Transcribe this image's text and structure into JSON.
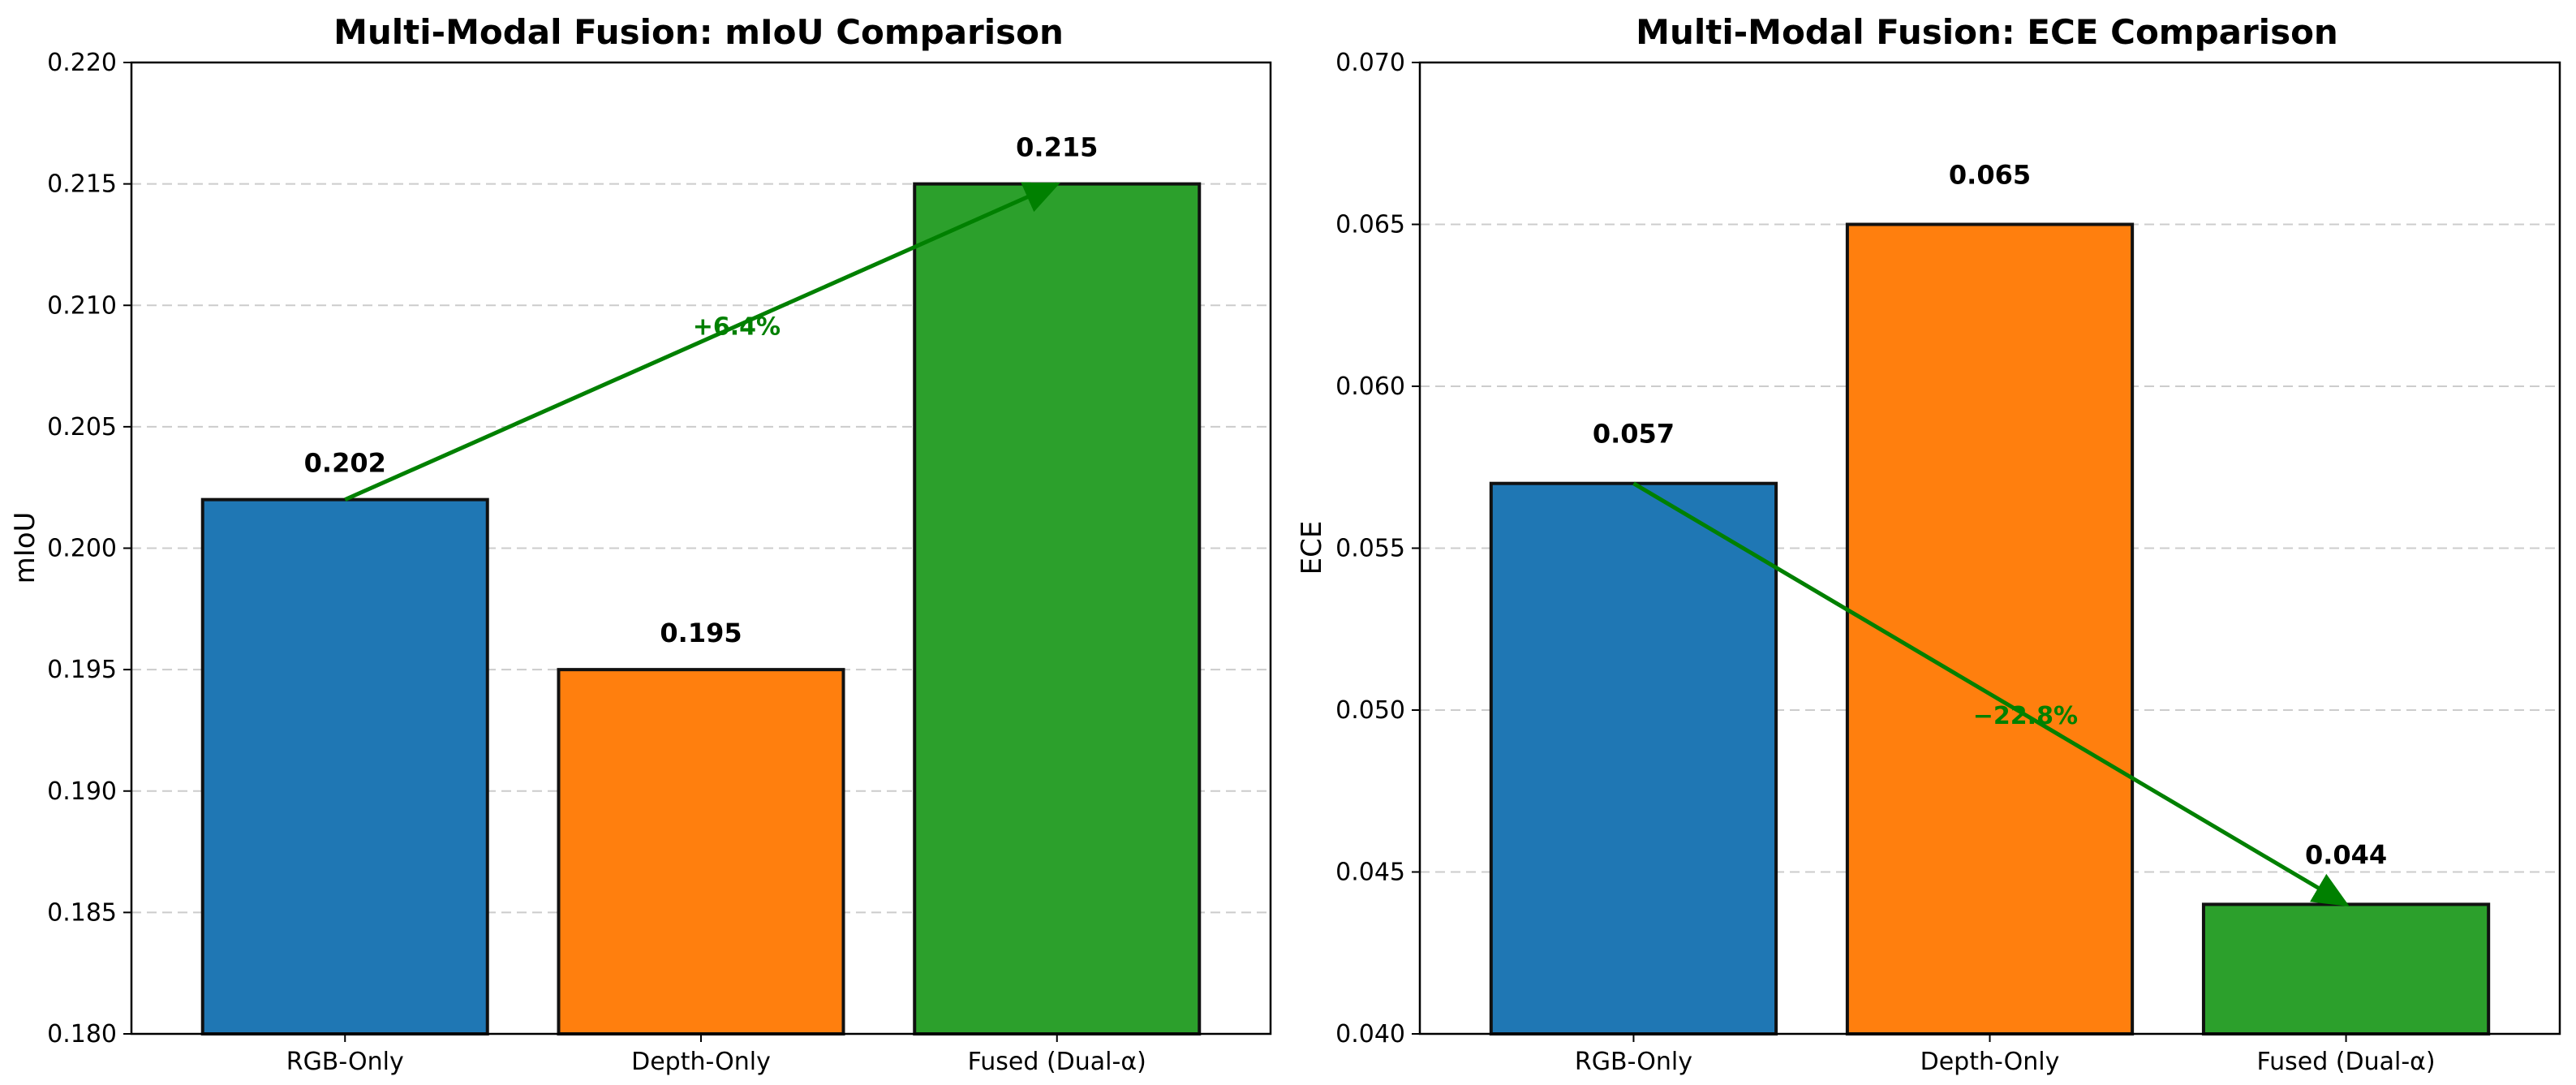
{
  "chart_data": [
    {
      "type": "bar",
      "title": "Multi-Modal Fusion: mIoU Comparison",
      "xlabel": "",
      "ylabel": "mIoU",
      "ylim": [
        0.18,
        0.22
      ],
      "yticks": [
        "0.180",
        "0.185",
        "0.190",
        "0.195",
        "0.200",
        "0.205",
        "0.210",
        "0.215",
        "0.220"
      ],
      "grid": true,
      "categories": [
        "RGB-Only",
        "Depth-Only",
        "Fused (Dual-α)"
      ],
      "values": [
        0.202,
        0.195,
        0.215
      ],
      "value_labels": [
        "0.202",
        "0.195",
        "0.215"
      ],
      "colors": [
        "#1f77b4",
        "#ff7f0e",
        "#2ca02c"
      ],
      "annotation": {
        "text": "+6.4%",
        "color": "#008000",
        "from_category": "RGB-Only",
        "to_category": "Fused (Dual-α)"
      }
    },
    {
      "type": "bar",
      "title": "Multi-Modal Fusion: ECE Comparison",
      "xlabel": "",
      "ylabel": "ECE",
      "ylim": [
        0.04,
        0.07
      ],
      "yticks": [
        "0.040",
        "0.045",
        "0.050",
        "0.055",
        "0.060",
        "0.065",
        "0.070"
      ],
      "grid": true,
      "categories": [
        "RGB-Only",
        "Depth-Only",
        "Fused (Dual-α)"
      ],
      "values": [
        0.057,
        0.065,
        0.044
      ],
      "value_labels": [
        "0.057",
        "0.065",
        "0.044"
      ],
      "colors": [
        "#1f77b4",
        "#ff7f0e",
        "#2ca02c"
      ],
      "annotation": {
        "text": "−22.8%",
        "color": "#008000",
        "from_category": "RGB-Only",
        "to_category": "Fused (Dual-α)"
      }
    }
  ]
}
